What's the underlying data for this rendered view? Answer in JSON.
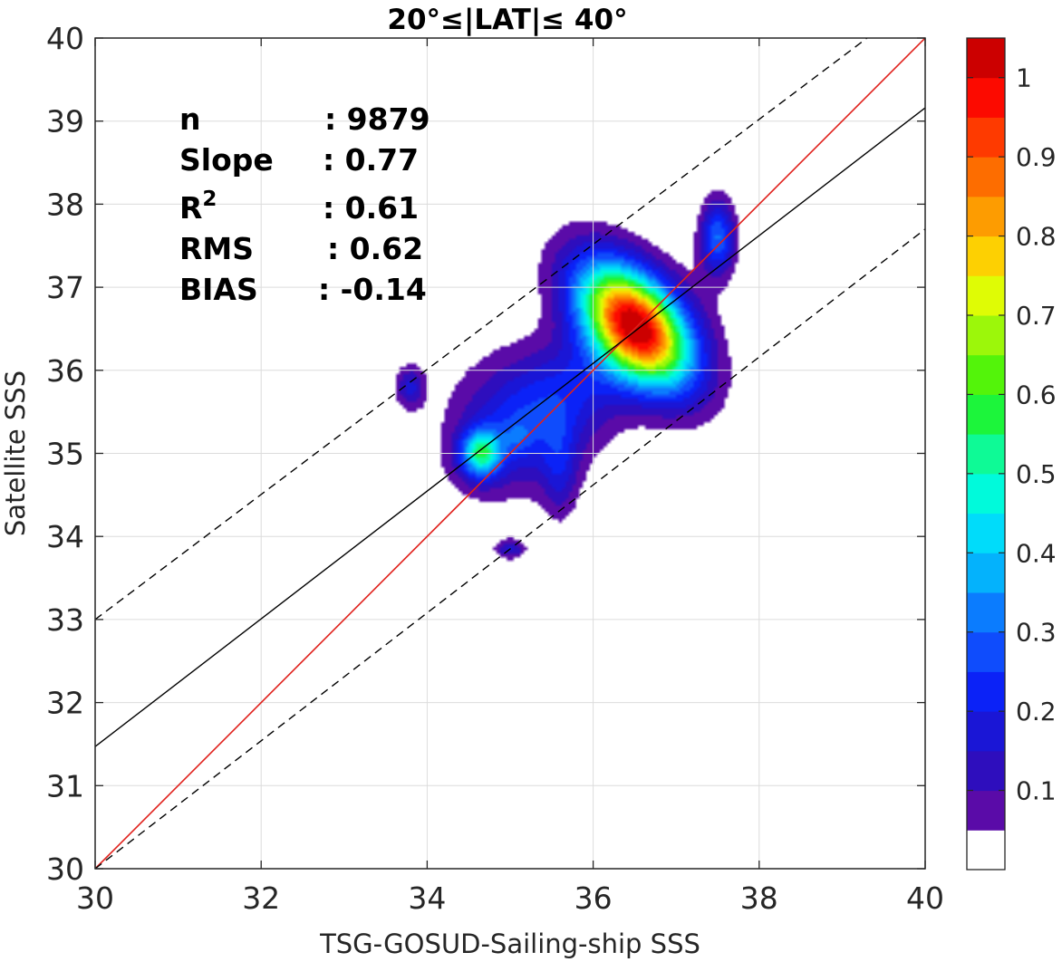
{
  "chart_data": {
    "type": "contour",
    "title": "20°≤|LAT|≤ 40°",
    "xlabel": "TSG-GOSUD-Sailing-ship SSS",
    "ylabel": "Satellite SSS",
    "xlim": [
      30,
      40
    ],
    "ylim": [
      30,
      40
    ],
    "xticks": [
      "30",
      "32",
      "34",
      "36",
      "38",
      "40"
    ],
    "yticks": [
      "30",
      "31",
      "32",
      "33",
      "34",
      "35",
      "36",
      "37",
      "38",
      "39",
      "40"
    ],
    "grid": true,
    "stats": [
      {
        "label": "n",
        "sep": ": ",
        "value": "9879"
      },
      {
        "label": "Slope",
        "sep": ": ",
        "value": "0.77"
      },
      {
        "label": "R",
        "sup": "2",
        "sep": ": ",
        "value": "0.61"
      },
      {
        "label": "RMS",
        "sep": ": ",
        "value": "0.62"
      },
      {
        "label": "BIAS",
        "sep": ": ",
        "value": "-0.14"
      }
    ],
    "lines": {
      "one_to_one": {
        "color": "#e0201b",
        "x": [
          30,
          40
        ],
        "y": [
          30,
          40
        ]
      },
      "regression": {
        "color": "#000000",
        "x": [
          30,
          40
        ],
        "y": [
          31.47,
          39.16
        ]
      },
      "bias_bands": {
        "color": "#000000",
        "style": "dashed",
        "upper": {
          "x": [
            30,
            39.3
          ],
          "y": [
            33.0,
            40.0
          ]
        },
        "lower": {
          "x": [
            30,
            40
          ],
          "y": [
            30.0,
            37.7
          ]
        }
      }
    },
    "contour_levels": [
      0.05,
      0.1,
      0.15,
      0.2,
      0.25,
      0.3,
      0.35,
      0.4,
      0.45,
      0.5,
      0.55,
      0.6,
      0.65,
      0.7,
      0.75,
      0.8,
      0.85,
      0.9,
      0.95,
      1.0
    ],
    "blobs": [
      {
        "cx": 36.5,
        "cy": 36.55,
        "sx": 0.35,
        "sy": 0.6,
        "rot": 40,
        "amp": 1.0
      },
      {
        "cx": 35.8,
        "cy": 35.8,
        "sx": 0.95,
        "sy": 0.42,
        "rot": 38,
        "amp": 0.16
      },
      {
        "cx": 35.1,
        "cy": 35.4,
        "sx": 0.55,
        "sy": 0.55,
        "rot": 45,
        "amp": 0.14
      },
      {
        "cx": 34.65,
        "cy": 35.0,
        "sx": 0.17,
        "sy": 0.2,
        "rot": 0,
        "amp": 0.45
      },
      {
        "cx": 35.1,
        "cy": 35.2,
        "sx": 0.12,
        "sy": 0.15,
        "rot": 0,
        "amp": 0.08
      },
      {
        "cx": 35.6,
        "cy": 34.8,
        "sx": 0.15,
        "sy": 0.4,
        "rot": 0,
        "amp": 0.13
      },
      {
        "cx": 37.5,
        "cy": 37.6,
        "sx": 0.14,
        "sy": 0.3,
        "rot": 0,
        "amp": 0.3
      },
      {
        "cx": 33.8,
        "cy": 35.8,
        "sx": 0.12,
        "sy": 0.18,
        "rot": 0,
        "amp": 0.16
      },
      {
        "cx": 35.0,
        "cy": 33.85,
        "sx": 0.12,
        "sy": 0.08,
        "rot": 0,
        "amp": 0.16
      }
    ],
    "colormap": [
      "#ffffff",
      "#5a0ba8",
      "#2e0ebd",
      "#1a16d6",
      "#0b22f7",
      "#0f4cfc",
      "#0b7cfe",
      "#04b2fc",
      "#00dcfa",
      "#00fadb",
      "#0efa96",
      "#1cf53b",
      "#53f40a",
      "#9cf70a",
      "#dffc05",
      "#fdd002",
      "#fd9c01",
      "#fd6d00",
      "#fe3a00",
      "#fc0a00",
      "#cc0000",
      "#8a0000"
    ],
    "colorbar": {
      "min": 0,
      "max": 1.05,
      "ticks": [
        "0.1",
        "0.2",
        "0.3",
        "0.4",
        "0.5",
        "0.6",
        "0.7",
        "0.8",
        "0.9",
        "1"
      ]
    }
  }
}
